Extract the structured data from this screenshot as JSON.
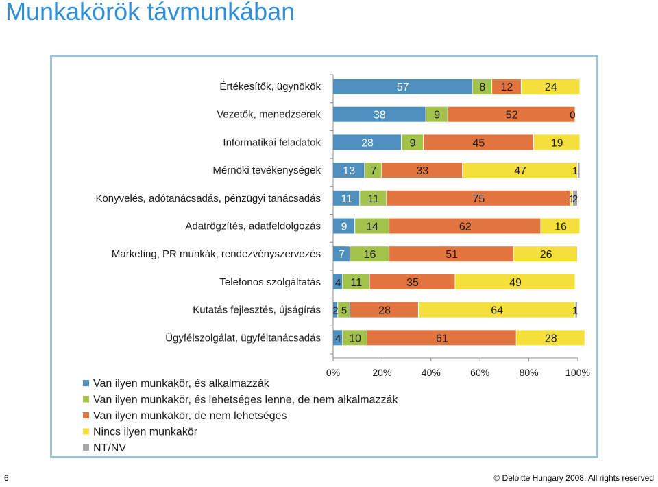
{
  "page": {
    "title": "Munkakörök távmunkában",
    "page_number": "6",
    "copyright": "© Deloitte Hungary 2008. All rights reserved"
  },
  "chart_data": {
    "type": "bar",
    "orientation": "horizontal",
    "stacked": true,
    "percent": true,
    "categories": [
      "Értékesítők, ügynökök",
      "Vezetők, menedzserek",
      "Informatikai feladatok",
      "Mérnöki tevékenységek",
      "Könyvelés, adótanácsadás, pénzügyi tanácsadás",
      "Adatrögzítés, adatfeldolgozás",
      "Marketing, PR munkák, rendezvényszervezés",
      "Telefonos  szolgáltatás",
      "Kutatás fejlesztés, újságírás",
      "Ügyfélszolgálat, ügyféltanácsadás"
    ],
    "series": [
      {
        "name": "Van ilyen munkakör, és alkalmazzák",
        "color": "#4e8fbe",
        "values": [
          57,
          38,
          28,
          13,
          11,
          9,
          7,
          4,
          2,
          4
        ]
      },
      {
        "name": "Van ilyen munkakör, és lehetséges lenne, de nem alkalmazzák",
        "color": "#a3c24b",
        "values": [
          8,
          9,
          9,
          7,
          11,
          14,
          16,
          11,
          5,
          10
        ]
      },
      {
        "name": "Van ilyen munkakör, de nem lehetséges",
        "color": "#e2743f",
        "values": [
          12,
          52,
          45,
          33,
          75,
          62,
          51,
          35,
          28,
          61
        ]
      },
      {
        "name": "Nincs ilyen munkakör",
        "color": "#f5e03b",
        "values": [
          24,
          0,
          19,
          47,
          1,
          16,
          26,
          49,
          64,
          28
        ]
      },
      {
        "name": "NT/NV",
        "color": "#a6a6a6",
        "values": [
          0,
          0,
          0,
          1,
          2,
          0,
          0,
          0,
          1,
          0
        ]
      }
    ],
    "x_ticks": [
      "0%",
      "20%",
      "40%",
      "60%",
      "80%",
      "100%"
    ],
    "xlim": [
      0,
      100
    ],
    "legend_position": "bottom-left",
    "grid": false
  }
}
